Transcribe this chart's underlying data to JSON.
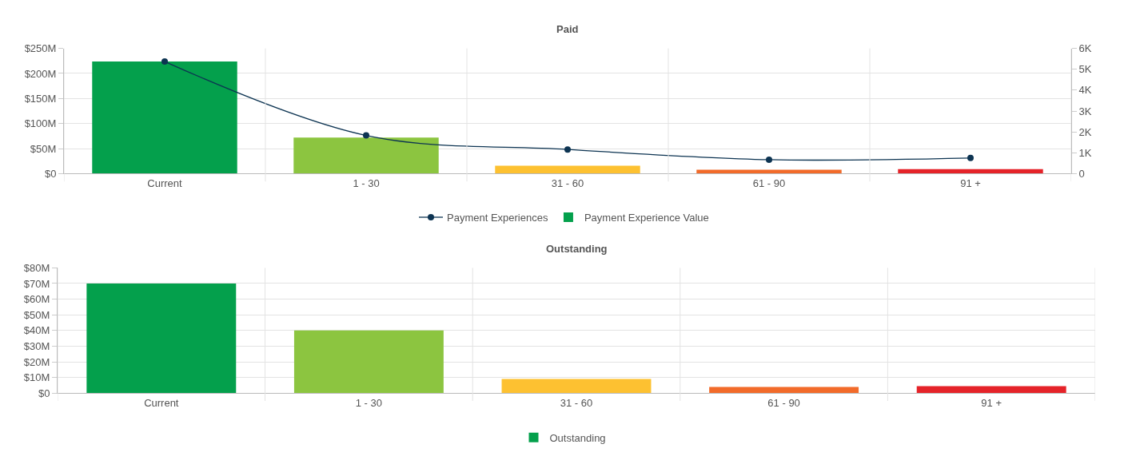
{
  "chart_data": [
    {
      "type": "bar",
      "title": "Paid",
      "categories": [
        "Current",
        "1 - 30",
        "31 - 60",
        "61 - 90",
        "91 +"
      ],
      "series": [
        {
          "name": "Payment Experiences",
          "type": "line",
          "axis": "y2",
          "color": "#0d3452",
          "values": [
            5370,
            1830,
            1160,
            670,
            750
          ]
        },
        {
          "name": "Payment Experience Value",
          "colors": [
            "#04a04c",
            "#8cc540",
            "#fdc131",
            "#f26b2a",
            "#e52329"
          ],
          "values": [
            224,
            72,
            16,
            8,
            9
          ]
        }
      ],
      "ylim": [
        0,
        250
      ],
      "yticks": [
        {
          "value": 0,
          "label": "$0"
        },
        {
          "value": 50,
          "label": "$50M"
        },
        {
          "value": 100,
          "label": "$100M"
        },
        {
          "value": 150,
          "label": "$150M"
        },
        {
          "value": 200,
          "label": "$200M"
        },
        {
          "value": 250,
          "label": "$250M"
        }
      ],
      "y2lim": [
        0,
        6000
      ],
      "y2ticks": [
        0,
        {
          "value": 1000,
          "label": "1K"
        },
        {
          "value": 2000,
          "label": "2K"
        },
        {
          "value": 3000,
          "label": "3K"
        },
        {
          "value": 4000,
          "label": "4K"
        },
        {
          "value": 5000,
          "label": "5K"
        },
        {
          "value": 6000,
          "label": "6K"
        }
      ],
      "grid": true,
      "legend": "bottom",
      "marker": "circle"
    },
    {
      "type": "bar",
      "title": "Outstanding",
      "categories": [
        "Current",
        "1 - 30",
        "31 - 60",
        "61 - 90",
        "91 +"
      ],
      "series": [
        {
          "name": "Outstanding",
          "colors": [
            "#04a04c",
            "#8cc540",
            "#fdc131",
            "#f26b2a",
            "#e52329"
          ],
          "values": [
            70,
            40,
            9,
            4,
            4.5
          ]
        }
      ],
      "ylim": [
        0,
        80
      ],
      "yticks": [
        {
          "value": 0,
          "label": "$0"
        },
        {
          "value": 10,
          "label": "$10M"
        },
        {
          "value": 20,
          "label": "$20M"
        },
        {
          "value": 30,
          "label": "$30M"
        },
        {
          "value": 40,
          "label": "$40M"
        },
        {
          "value": 50,
          "label": "$50M"
        },
        {
          "value": 60,
          "label": "$60M"
        },
        {
          "value": 70,
          "label": "$70M"
        },
        {
          "value": 80,
          "label": "$80M"
        }
      ],
      "grid": true,
      "legend": "bottom"
    }
  ]
}
